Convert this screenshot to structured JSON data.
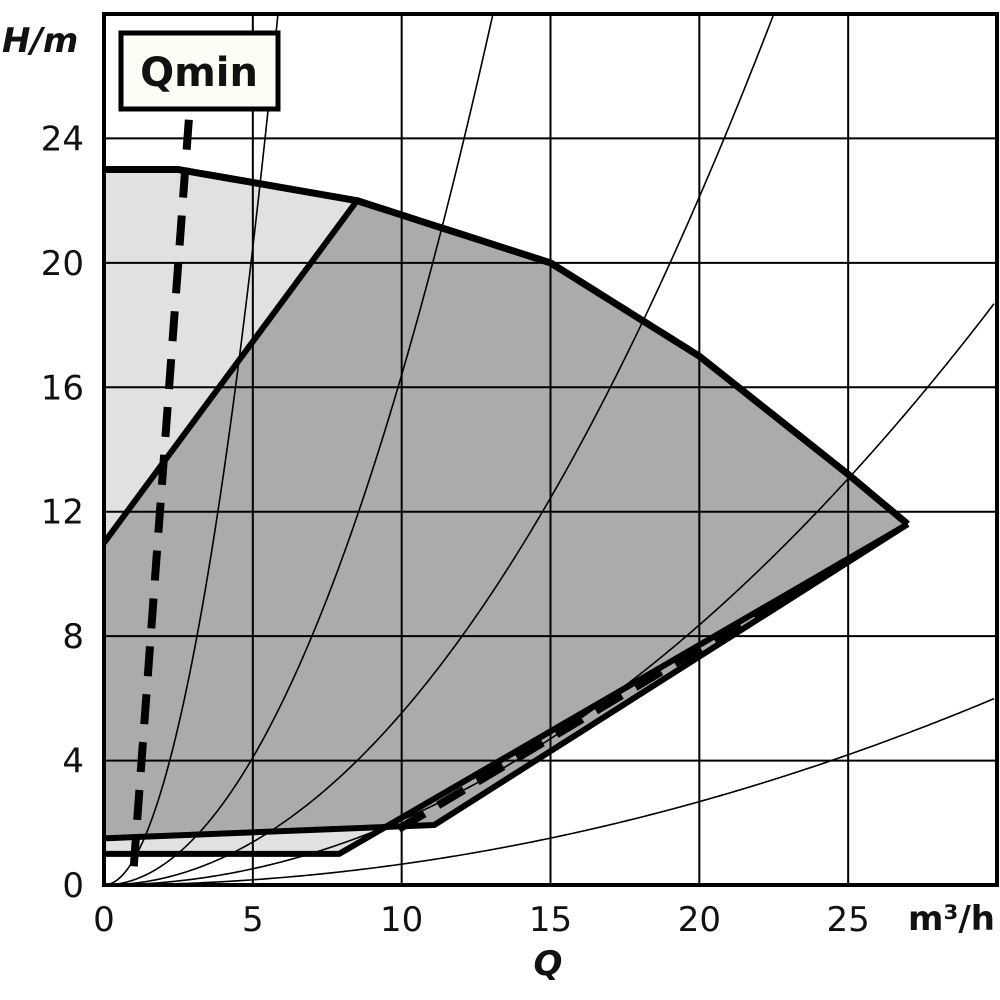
{
  "chart_data": {
    "type": "line",
    "title": "",
    "xlabel": "Q",
    "xunit": "m³/h",
    "ylabel": "H/m",
    "xlim": [
      0,
      30
    ],
    "ylim": [
      0,
      28
    ],
    "grid": true,
    "x_ticks": [
      "0",
      "5",
      "10",
      "15",
      "20",
      "25"
    ],
    "y_ticks": [
      "0",
      "4",
      "8",
      "12",
      "16",
      "20",
      "24"
    ],
    "annotation": "Qmin",
    "colors": {
      "light_region": "#e1e1e1",
      "dark_region": "#ababab",
      "line": "#000000",
      "label_box": "#fdfdf6"
    },
    "max_curve": {
      "shutoff_head": 23,
      "points": [
        [
          0,
          23
        ],
        [
          2.5,
          23
        ],
        [
          8.5,
          22
        ],
        [
          15,
          20
        ],
        [
          20,
          17
        ],
        [
          25,
          13.2
        ],
        [
          27,
          11.6
        ]
      ]
    },
    "light_region_left_edge": [
      [
        0,
        11
      ],
      [
        8.5,
        22
      ]
    ],
    "lower_limit_upper": [
      [
        0,
        1.5
      ],
      [
        11.1,
        1.93
      ],
      [
        27,
        11.6
      ]
    ],
    "lower_limit_lower": [
      [
        0,
        1
      ],
      [
        7.9,
        1
      ],
      [
        27,
        11.6
      ]
    ],
    "qmin_line": [
      [
        2.85,
        24.6
      ],
      [
        1.0,
        0.6
      ]
    ],
    "dashed_lower_line": [
      [
        9.9,
        1.8
      ],
      [
        24.9,
        10.4
      ]
    ],
    "system_curves_coefficients": [
      0.82,
      0.164,
      0.0553,
      0.0209,
      0.0067
    ]
  }
}
